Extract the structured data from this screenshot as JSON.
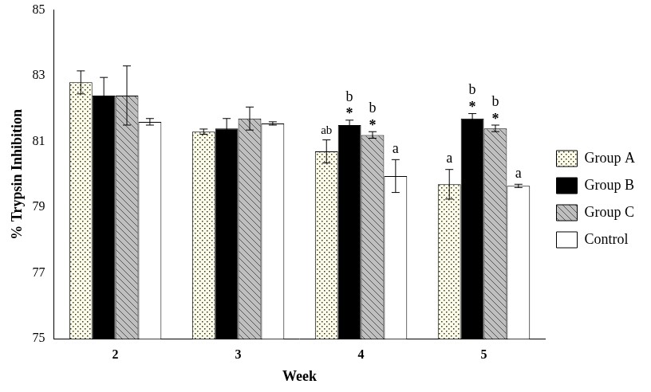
{
  "chart_data": {
    "type": "bar",
    "x_label": "Week",
    "y_label": "% Trypsin Inhibition",
    "categories": [
      "2",
      "3",
      "4",
      "5"
    ],
    "ylim": [
      75,
      85
    ],
    "yticks": [
      75,
      77,
      79,
      81,
      83,
      85
    ],
    "grid": false,
    "legend": "right",
    "series": [
      {
        "name": "Group A",
        "color": "#fdfde8",
        "marker": "dots",
        "values": [
          82.8,
          81.3,
          80.7,
          79.7
        ],
        "errors": [
          0.35,
          0.08,
          0.35,
          0.45
        ],
        "letters": [
          null,
          null,
          "ab",
          "a"
        ],
        "stars": [
          null,
          null,
          null,
          null
        ]
      },
      {
        "name": "Group B",
        "color": "#000000",
        "marker": "solid",
        "values": [
          82.4,
          81.4,
          81.5,
          81.7
        ],
        "errors": [
          0.55,
          0.3,
          0.15,
          0.15
        ],
        "letters": [
          null,
          null,
          "b",
          "b"
        ],
        "stars": [
          null,
          null,
          "*",
          "*"
        ]
      },
      {
        "name": "Group C",
        "color": "#bfbfbf",
        "marker": "hatch",
        "values": [
          82.4,
          81.7,
          81.2,
          81.4
        ],
        "errors": [
          0.9,
          0.35,
          0.1,
          0.1
        ],
        "letters": [
          null,
          null,
          "b",
          "b"
        ],
        "stars": [
          null,
          null,
          "*",
          "*"
        ]
      },
      {
        "name": "Control",
        "color": "#ffffff",
        "marker": "solid",
        "values": [
          81.6,
          81.55,
          79.95,
          79.65
        ],
        "errors": [
          0.1,
          0.05,
          0.5,
          0.05
        ],
        "letters": [
          null,
          null,
          "a",
          "a"
        ],
        "stars": [
          null,
          null,
          null,
          null
        ]
      }
    ]
  }
}
